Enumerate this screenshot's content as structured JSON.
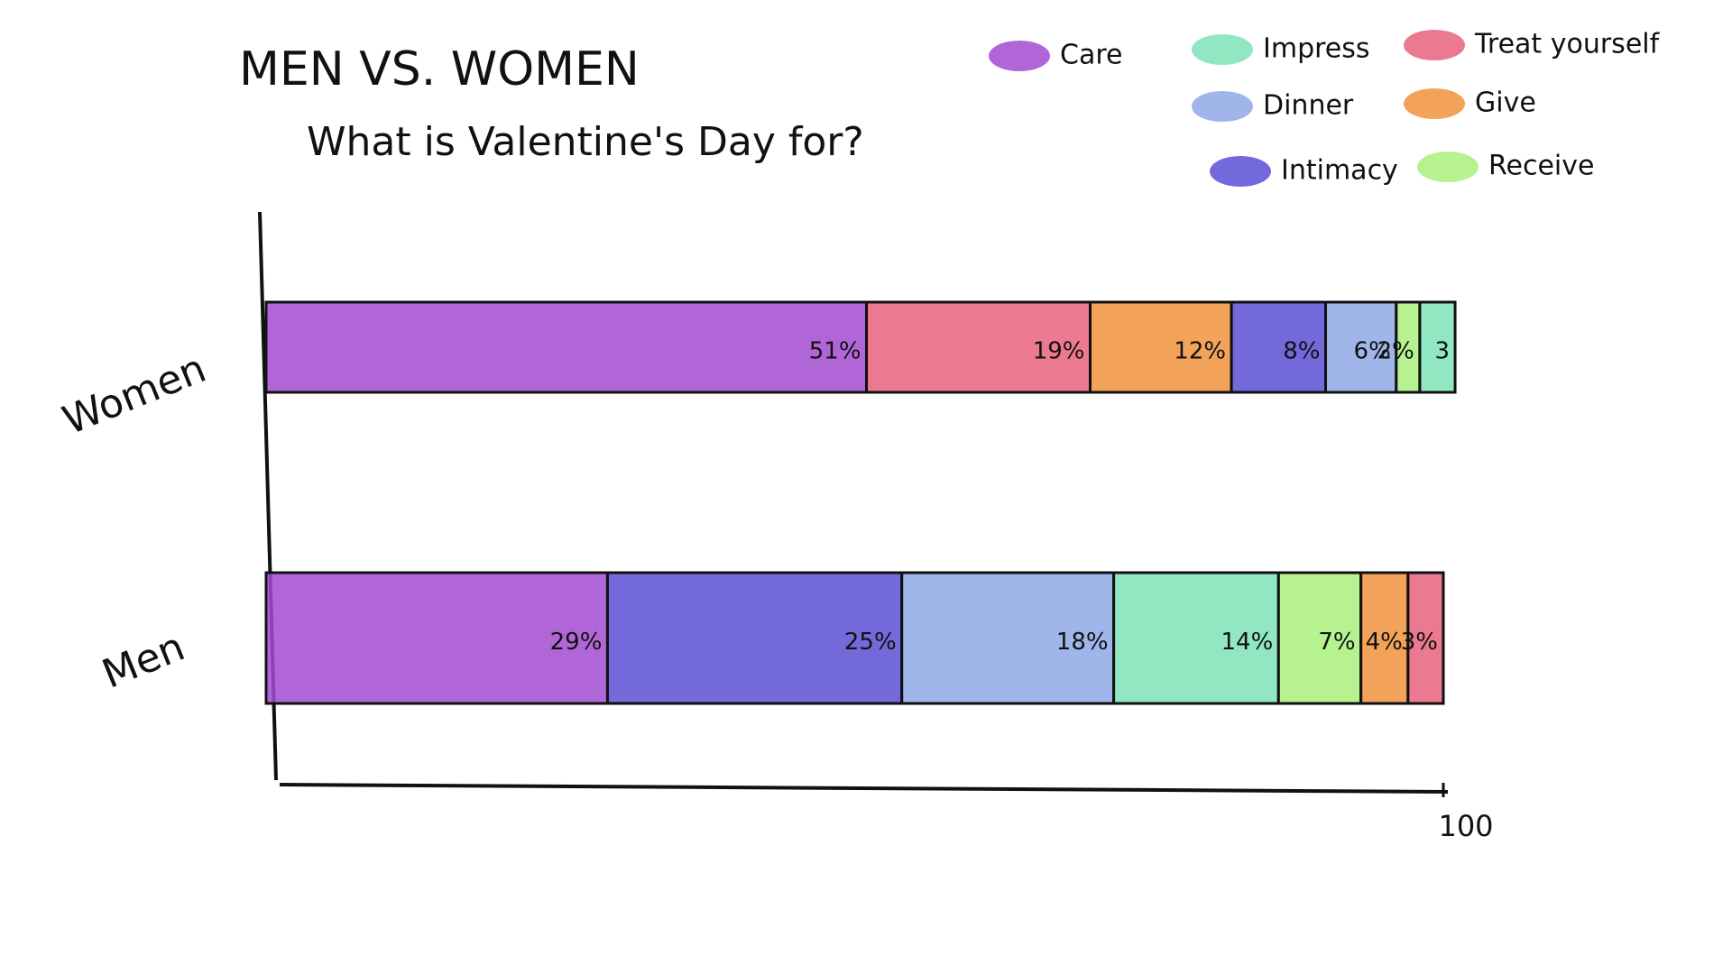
{
  "chart_data": {
    "type": "stacked-bar",
    "title": "MEN VS. WOMEN",
    "subtitle": "What is Valentine's Day for?",
    "legend": [
      {
        "name": "Care",
        "color": "#a34bd0"
      },
      {
        "name": "Impress",
        "color": "#7fe3b8"
      },
      {
        "name": "Dinner",
        "color": "#8fa9e6"
      },
      {
        "name": "Intimacy",
        "color": "#5a4fd4"
      },
      {
        "name": "Treat yourself",
        "color": "#e8627c"
      },
      {
        "name": "Give",
        "color": "#f0933c"
      },
      {
        "name": "Receive",
        "color": "#a9f07c"
      }
    ],
    "bars": [
      {
        "label": "Women",
        "segments": [
          {
            "name": "Care",
            "value": 51,
            "value_label": "51%"
          },
          {
            "name": "Treat yourself",
            "value": 19,
            "value_label": "19%"
          },
          {
            "name": "Give",
            "value": 12,
            "value_label": "12%"
          },
          {
            "name": "Intimacy",
            "value": 8,
            "value_label": "8%"
          },
          {
            "name": "Dinner",
            "value": 6,
            "value_label": "6%"
          },
          {
            "name": "Receive",
            "value": 2,
            "value_label": "2%"
          },
          {
            "name": "Impress",
            "value": 3,
            "value_label": "3"
          }
        ]
      },
      {
        "label": "Men",
        "segments": [
          {
            "name": "Care",
            "value": 29,
            "value_label": "29%"
          },
          {
            "name": "Intimacy",
            "value": 25,
            "value_label": "25%"
          },
          {
            "name": "Dinner",
            "value": 18,
            "value_label": "18%"
          },
          {
            "name": "Impress",
            "value": 14,
            "value_label": "14%"
          },
          {
            "name": "Receive",
            "value": 7,
            "value_label": "7%"
          },
          {
            "name": "Give",
            "value": 4,
            "value_label": "4%"
          },
          {
            "name": "Treat yourself",
            "value": 3,
            "value_label": "3%"
          }
        ]
      }
    ],
    "xlim": [
      0,
      100
    ],
    "xticks": [
      100
    ]
  }
}
